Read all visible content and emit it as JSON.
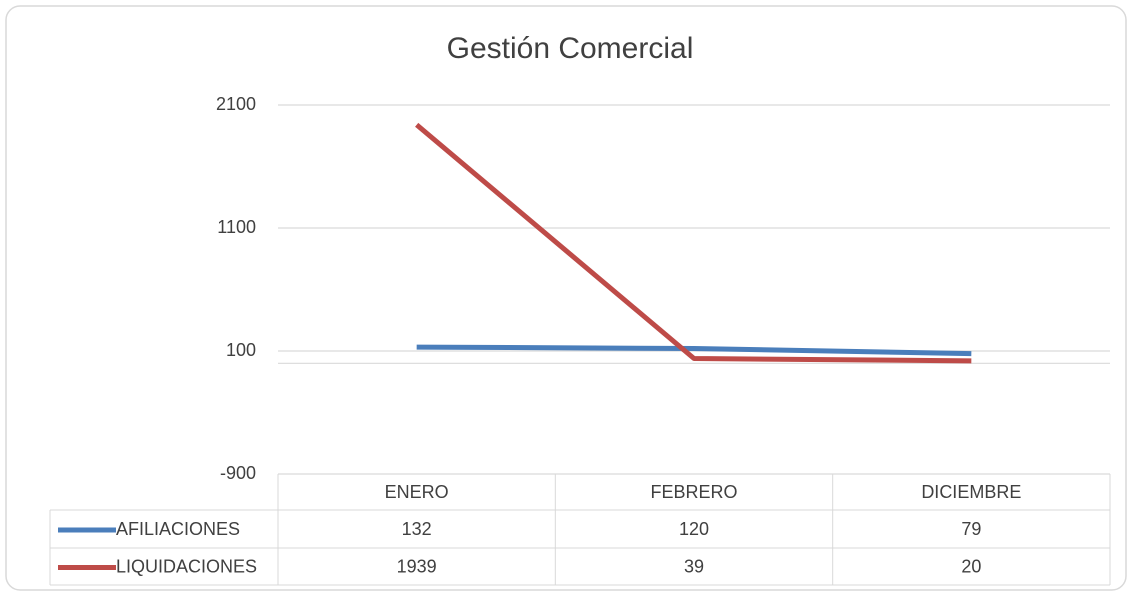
{
  "chart_data": {
    "type": "line",
    "title": "Gestión Comercial",
    "categories": [
      "ENERO",
      "FEBRERO",
      "DICIEMBRE"
    ],
    "series": [
      {
        "name": "AFILIACIONES",
        "color": "#4a7ebb",
        "values": [
          132,
          120,
          79
        ]
      },
      {
        "name": "LIQUIDACIONES",
        "color": "#be4b48",
        "values": [
          1939,
          39,
          20
        ]
      }
    ],
    "ylim": [
      -900,
      2100
    ],
    "yticks": [
      -900,
      100,
      1100,
      2100
    ],
    "grid": true,
    "data_table": true
  }
}
